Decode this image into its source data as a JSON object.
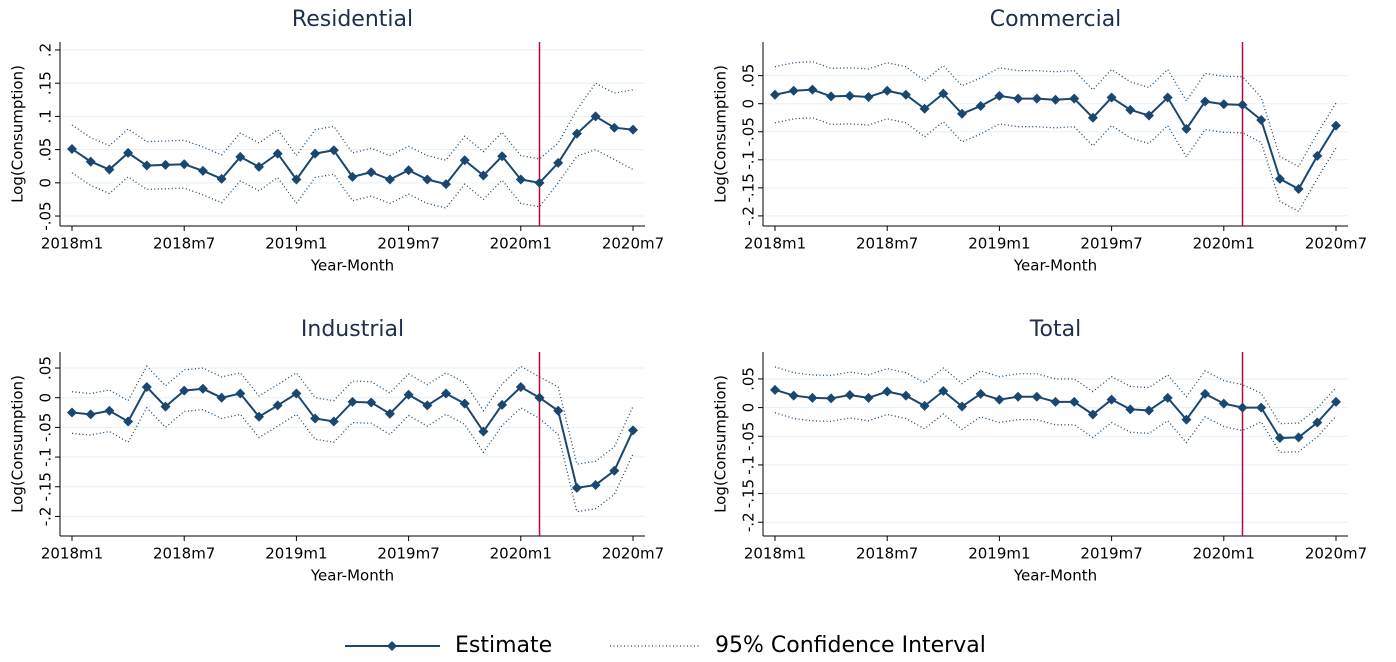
{
  "chart_data": [
    {
      "type": "line",
      "title": "Residential",
      "x_label": "Year-Month",
      "y_label": "Log(Consumption)",
      "categories": [
        "2018m1",
        null,
        null,
        null,
        null,
        null,
        "2018m7",
        null,
        null,
        null,
        null,
        null,
        "2019m1",
        null,
        null,
        null,
        null,
        null,
        "2019m7",
        null,
        null,
        null,
        null,
        null,
        "2020m1",
        null,
        null,
        null,
        null,
        null,
        "2020m7"
      ],
      "ylim": [
        -0.065,
        0.212
      ],
      "yticks": [
        {
          "value": -0.05,
          "label": "-.05"
        },
        0,
        {
          "value": 0.05,
          "label": ".05"
        },
        {
          "value": 0.1,
          "label": ".1"
        },
        {
          "value": 0.15,
          "label": ".15"
        },
        {
          "value": 0.2,
          "label": ".2"
        }
      ],
      "grid": true,
      "vline": 25,
      "vline_color": "#c10534",
      "legend": "bottom",
      "series": [
        {
          "name": "Estimate",
          "color": "#1a476f",
          "values": [
            0.051,
            0.032,
            0.02,
            0.045,
            0.026,
            0.027,
            0.028,
            0.018,
            0.006,
            0.039,
            0.024,
            0.044,
            0.005,
            0.044,
            0.049,
            0.009,
            0.016,
            0.005,
            0.019,
            0.005,
            -0.002,
            0.034,
            0.011,
            0.04,
            0.005,
            0,
            0.03,
            0.074,
            0.1,
            0.083,
            0.08
          ]
        },
        {
          "name": "95% Confidence Interval",
          "color": "#1a476f",
          "upper": [
            0.087,
            0.068,
            0.056,
            0.081,
            0.062,
            0.063,
            0.064,
            0.054,
            0.042,
            0.075,
            0.06,
            0.08,
            0.041,
            0.08,
            0.085,
            0.045,
            0.052,
            0.041,
            0.055,
            0.041,
            0.034,
            0.07,
            0.047,
            0.076,
            0.041,
            0.036,
            0.06,
            0.11,
            0.15,
            0.135,
            0.14
          ],
          "lower": [
            0.015,
            -0.004,
            -0.016,
            0.009,
            -0.01,
            -0.009,
            -0.008,
            -0.018,
            -0.03,
            0.003,
            -0.012,
            0.008,
            -0.031,
            0.008,
            0.013,
            -0.027,
            -0.02,
            -0.031,
            -0.017,
            -0.031,
            -0.038,
            -0.002,
            -0.025,
            0.004,
            -0.031,
            -0.036,
            0,
            0.04,
            0.05,
            0.035,
            0.02
          ]
        }
      ]
    },
    {
      "type": "line",
      "title": "Commercial",
      "x_label": "Year-Month",
      "y_label": "Log(Consumption)",
      "categories": [
        "2018m1",
        null,
        null,
        null,
        null,
        null,
        "2018m7",
        null,
        null,
        null,
        null,
        null,
        "2019m1",
        null,
        null,
        null,
        null,
        null,
        "2019m7",
        null,
        null,
        null,
        null,
        null,
        "2020m1",
        null,
        null,
        null,
        null,
        null,
        "2020m7"
      ],
      "ylim": [
        -0.218,
        0.11
      ],
      "yticks": [
        {
          "value": -0.2,
          "label": "-.2"
        },
        {
          "value": -0.15,
          "label": "-.15"
        },
        {
          "value": -0.1,
          "label": "-.1"
        },
        {
          "value": -0.05,
          "label": "-.05"
        },
        0,
        {
          "value": 0.05,
          "label": ".05"
        }
      ],
      "grid": true,
      "vline": 25,
      "vline_color": "#c10534",
      "series": [
        {
          "name": "Estimate",
          "color": "#1a476f",
          "values": [
            0.016,
            0.023,
            0.025,
            0.013,
            0.014,
            0.012,
            0.023,
            0.016,
            -0.009,
            0.018,
            -0.018,
            -0.004,
            0.014,
            0.009,
            0.009,
            0.007,
            0.009,
            -0.025,
            0.011,
            -0.011,
            -0.021,
            0.011,
            -0.045,
            0.004,
            -0.001,
            -0.002,
            -0.029,
            -0.134,
            -0.152,
            -0.093,
            -0.039
          ]
        },
        {
          "name": "95% Confidence Interval",
          "color": "#1a476f",
          "upper": [
            0.066,
            0.073,
            0.075,
            0.063,
            0.064,
            0.062,
            0.073,
            0.066,
            0.041,
            0.068,
            0.032,
            0.046,
            0.064,
            0.059,
            0.059,
            0.057,
            0.059,
            0.025,
            0.061,
            0.039,
            0.029,
            0.061,
            0.005,
            0.054,
            0.049,
            0.048,
            0.011,
            -0.094,
            -0.112,
            -0.053,
            0.001
          ],
          "lower": [
            -0.034,
            -0.027,
            -0.025,
            -0.037,
            -0.036,
            -0.038,
            -0.027,
            -0.034,
            -0.059,
            -0.032,
            -0.068,
            -0.054,
            -0.036,
            -0.041,
            -0.041,
            -0.043,
            -0.041,
            -0.075,
            -0.039,
            -0.061,
            -0.071,
            -0.039,
            -0.095,
            -0.046,
            -0.051,
            -0.052,
            -0.069,
            -0.174,
            -0.192,
            -0.133,
            -0.079
          ]
        }
      ]
    },
    {
      "type": "line",
      "title": "Industrial",
      "x_label": "Year-Month",
      "y_label": "Log(Consumption)",
      "categories": [
        "2018m1",
        null,
        null,
        null,
        null,
        null,
        "2018m7",
        null,
        null,
        null,
        null,
        null,
        "2019m1",
        null,
        null,
        null,
        null,
        null,
        "2019m7",
        null,
        null,
        null,
        null,
        null,
        "2020m1",
        null,
        null,
        null,
        null,
        null,
        "2020m7"
      ],
      "ylim": [
        -0.233,
        0.077
      ],
      "yticks": [
        {
          "value": -0.2,
          "label": "-.2"
        },
        {
          "value": -0.15,
          "label": "-.15"
        },
        {
          "value": -0.1,
          "label": "-.1"
        },
        {
          "value": -0.05,
          "label": "-.05"
        },
        0,
        {
          "value": 0.05,
          "label": ".05"
        }
      ],
      "grid": true,
      "vline": 25,
      "vline_color": "#c10534",
      "series": [
        {
          "name": "Estimate",
          "color": "#1a476f",
          "values": [
            -0.025,
            -0.028,
            -0.022,
            -0.04,
            0.018,
            -0.015,
            0.012,
            0.015,
            0,
            0.007,
            -0.032,
            -0.013,
            0.007,
            -0.035,
            -0.04,
            -0.007,
            -0.008,
            -0.027,
            0.005,
            -0.013,
            0.007,
            -0.01,
            -0.057,
            -0.012,
            0.018,
            0,
            -0.022,
            -0.152,
            -0.147,
            -0.123,
            -0.055
          ]
        },
        {
          "name": "95% Confidence Interval",
          "color": "#1a476f",
          "upper": [
            0.01,
            0.007,
            0.013,
            -0.005,
            0.053,
            0.02,
            0.047,
            0.05,
            0.035,
            0.042,
            0.003,
            0.022,
            0.042,
            0,
            -0.005,
            0.028,
            0.027,
            0.008,
            0.04,
            0.022,
            0.042,
            0.025,
            -0.022,
            0.023,
            0.053,
            0.035,
            0.018,
            -0.112,
            -0.107,
            -0.083,
            -0.015
          ],
          "lower": [
            -0.06,
            -0.063,
            -0.057,
            -0.075,
            -0.017,
            -0.05,
            -0.023,
            -0.02,
            -0.035,
            -0.028,
            -0.067,
            -0.048,
            -0.028,
            -0.07,
            -0.075,
            -0.042,
            -0.043,
            -0.062,
            -0.03,
            -0.048,
            -0.028,
            -0.045,
            -0.092,
            -0.047,
            -0.017,
            -0.035,
            -0.062,
            -0.192,
            -0.187,
            -0.163,
            -0.095
          ]
        }
      ]
    },
    {
      "type": "line",
      "title": "Total",
      "x_label": "Year-Month",
      "y_label": "Log(Consumption)",
      "categories": [
        "2018m1",
        null,
        null,
        null,
        null,
        null,
        "2018m7",
        null,
        null,
        null,
        null,
        null,
        "2019m1",
        null,
        null,
        null,
        null,
        null,
        "2019m7",
        null,
        null,
        null,
        null,
        null,
        "2020m1",
        null,
        null,
        null,
        null,
        null,
        "2020m7"
      ],
      "ylim": [
        -0.224,
        0.097
      ],
      "yticks": [
        {
          "value": -0.2,
          "label": "-.2"
        },
        {
          "value": -0.15,
          "label": "-.15"
        },
        {
          "value": -0.1,
          "label": "-.1"
        },
        {
          "value": -0.05,
          "label": "-.05"
        },
        0,
        {
          "value": 0.05,
          "label": ".05"
        }
      ],
      "grid": true,
      "vline": 25,
      "vline_color": "#c10534",
      "series": [
        {
          "name": "Estimate",
          "color": "#1a476f",
          "values": [
            0.031,
            0.021,
            0.017,
            0.016,
            0.022,
            0.017,
            0.028,
            0.021,
            0.003,
            0.029,
            0.002,
            0.024,
            0.014,
            0.019,
            0.019,
            0.01,
            0.01,
            -0.012,
            0.014,
            -0.003,
            -0.005,
            0.017,
            -0.021,
            0.024,
            0.007,
            0,
            0,
            -0.053,
            -0.052,
            -0.026,
            0.01
          ]
        },
        {
          "name": "95% Confidence Interval",
          "color": "#1a476f",
          "upper": [
            0.071,
            0.061,
            0.057,
            0.056,
            0.062,
            0.057,
            0.068,
            0.061,
            0.043,
            0.069,
            0.042,
            0.064,
            0.054,
            0.059,
            0.059,
            0.05,
            0.05,
            0.028,
            0.054,
            0.037,
            0.035,
            0.057,
            0.019,
            0.064,
            0.047,
            0.04,
            0.025,
            -0.028,
            -0.027,
            -0.001,
            0.035
          ],
          "lower": [
            -0.009,
            -0.019,
            -0.023,
            -0.024,
            -0.018,
            -0.023,
            -0.012,
            -0.019,
            -0.037,
            -0.011,
            -0.038,
            -0.016,
            -0.026,
            -0.021,
            -0.021,
            -0.03,
            -0.03,
            -0.052,
            -0.026,
            -0.043,
            -0.045,
            -0.023,
            -0.061,
            -0.016,
            -0.033,
            -0.04,
            -0.025,
            -0.078,
            -0.077,
            -0.051,
            -0.015
          ]
        }
      ]
    }
  ]
}
